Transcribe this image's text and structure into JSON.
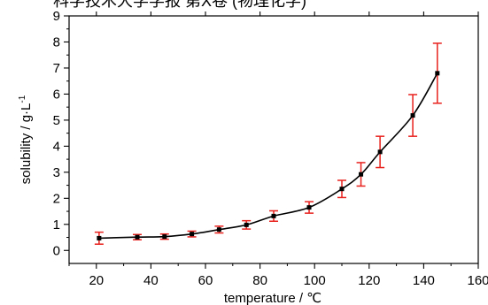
{
  "cropped_top_text": "科学技术大学学报 第X卷 (物理化学)",
  "chart_data": {
    "type": "line",
    "xlabel": "temperature / ℃",
    "ylabel": "solubility / g·L",
    "ylabel_superscript": "-1",
    "xlim": [
      10,
      160
    ],
    "ylim": [
      -0.5,
      9
    ],
    "xticks": [
      20,
      40,
      60,
      80,
      100,
      120,
      140,
      160
    ],
    "yticks": [
      0,
      1,
      2,
      3,
      4,
      5,
      6,
      7,
      8,
      9
    ],
    "grid": false,
    "series": [
      {
        "line_color": "#000000",
        "marker": "square",
        "error_bar_color": "#e8211d",
        "points": [
          {
            "x": 21,
            "y": 0.47,
            "err": 0.23
          },
          {
            "x": 35,
            "y": 0.51,
            "err": 0.1
          },
          {
            "x": 45,
            "y": 0.53,
            "err": 0.1
          },
          {
            "x": 55,
            "y": 0.63,
            "err": 0.11
          },
          {
            "x": 65,
            "y": 0.8,
            "err": 0.13
          },
          {
            "x": 75,
            "y": 0.98,
            "err": 0.16
          },
          {
            "x": 85,
            "y": 1.32,
            "err": 0.2
          },
          {
            "x": 98,
            "y": 1.65,
            "err": 0.22
          },
          {
            "x": 110,
            "y": 2.36,
            "err": 0.33
          },
          {
            "x": 117,
            "y": 2.92,
            "err": 0.45
          },
          {
            "x": 124,
            "y": 3.78,
            "err": 0.6
          },
          {
            "x": 136,
            "y": 5.18,
            "err": 0.8
          },
          {
            "x": 145,
            "y": 6.8,
            "err": 1.15
          }
        ]
      }
    ]
  }
}
